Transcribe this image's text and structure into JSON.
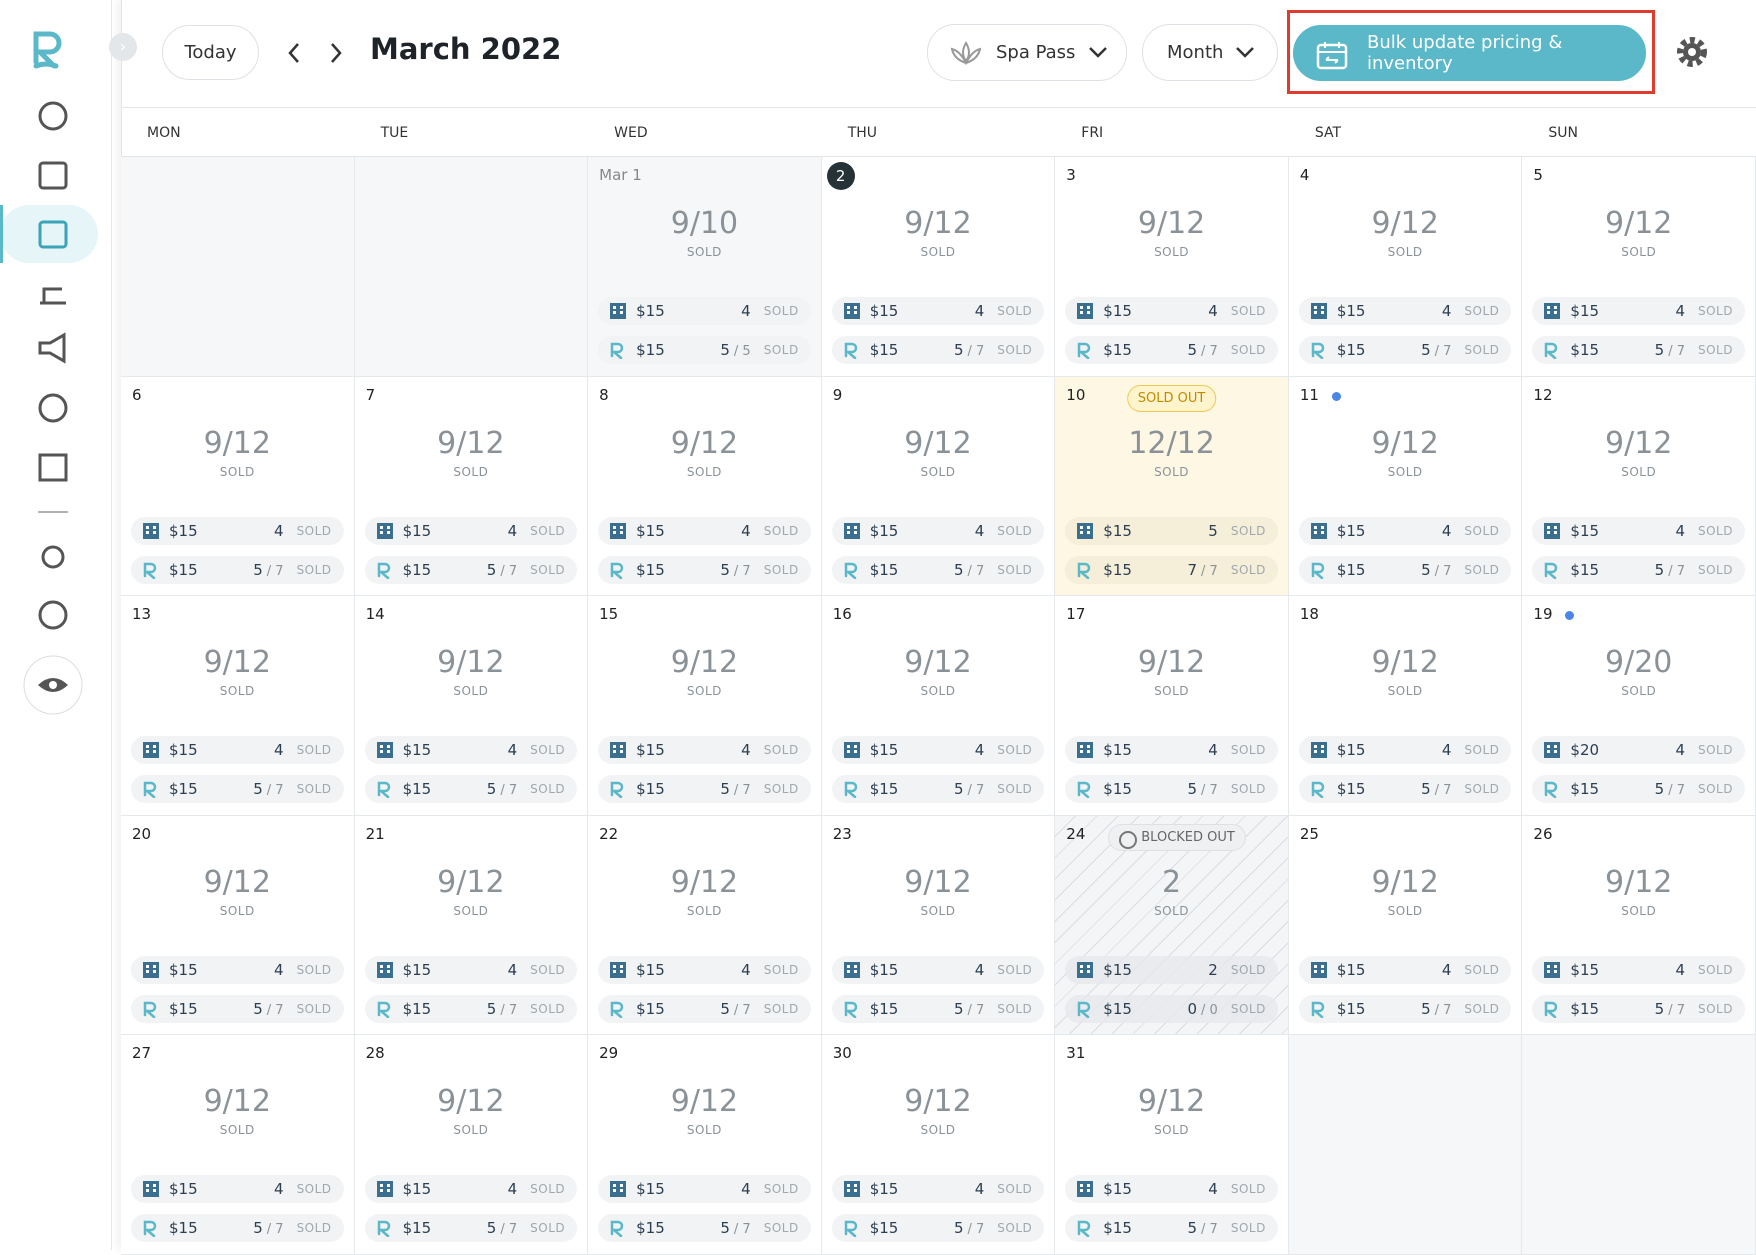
{
  "header": {
    "today_button": "Today",
    "title": "March 2022",
    "pass_select": "Spa Pass",
    "view_select": "Month",
    "bulk_button": "Bulk update pricing & inventory"
  },
  "weekdays": [
    "MON",
    "TUE",
    "WED",
    "THU",
    "FRI",
    "SAT",
    "SUN"
  ],
  "calendar": {
    "sold_label": "SOLD",
    "weeks": [
      [
        null,
        null,
        {
          "day": "Mar 1",
          "status": "past",
          "sold": "9/10",
          "hotel_price": "$15",
          "hotel_count": "4",
          "resort_price": "$15",
          "resort_count": "5",
          "resort_cap": "/ 5"
        },
        {
          "day": "2",
          "status": "today",
          "sold": "9/12",
          "hotel_price": "$15",
          "hotel_count": "4",
          "resort_price": "$15",
          "resort_count": "5",
          "resort_cap": "/ 7"
        },
        {
          "day": "3",
          "sold": "9/12",
          "hotel_price": "$15",
          "hotel_count": "4",
          "resort_price": "$15",
          "resort_count": "5",
          "resort_cap": "/ 7"
        },
        {
          "day": "4",
          "sold": "9/12",
          "hotel_price": "$15",
          "hotel_count": "4",
          "resort_price": "$15",
          "resort_count": "5",
          "resort_cap": "/ 7"
        },
        {
          "day": "5",
          "sold": "9/12",
          "hotel_price": "$15",
          "hotel_count": "4",
          "resort_price": "$15",
          "resort_count": "5",
          "resort_cap": "/ 7"
        }
      ],
      [
        {
          "day": "6",
          "sold": "9/12",
          "hotel_price": "$15",
          "hotel_count": "4",
          "resort_price": "$15",
          "resort_count": "5",
          "resort_cap": "/ 7"
        },
        {
          "day": "7",
          "sold": "9/12",
          "hotel_price": "$15",
          "hotel_count": "4",
          "resort_price": "$15",
          "resort_count": "5",
          "resort_cap": "/ 7"
        },
        {
          "day": "8",
          "sold": "9/12",
          "hotel_price": "$15",
          "hotel_count": "4",
          "resort_price": "$15",
          "resort_count": "5",
          "resort_cap": "/ 7"
        },
        {
          "day": "9",
          "sold": "9/12",
          "hotel_price": "$15",
          "hotel_count": "4",
          "resort_price": "$15",
          "resort_count": "5",
          "resort_cap": "/ 7"
        },
        {
          "day": "10",
          "status": "sold_out",
          "badge": "SOLD OUT",
          "sold": "12/12",
          "hotel_price": "$15",
          "hotel_count": "5",
          "resort_price": "$15",
          "resort_count": "7",
          "resort_cap": "/ 7"
        },
        {
          "day": "11",
          "dot": true,
          "sold": "9/12",
          "hotel_price": "$15",
          "hotel_count": "4",
          "resort_price": "$15",
          "resort_count": "5",
          "resort_cap": "/ 7"
        },
        {
          "day": "12",
          "sold": "9/12",
          "hotel_price": "$15",
          "hotel_count": "4",
          "resort_price": "$15",
          "resort_count": "5",
          "resort_cap": "/ 7"
        }
      ],
      [
        {
          "day": "13",
          "sold": "9/12",
          "hotel_price": "$15",
          "hotel_count": "4",
          "resort_price": "$15",
          "resort_count": "5",
          "resort_cap": "/ 7"
        },
        {
          "day": "14",
          "sold": "9/12",
          "hotel_price": "$15",
          "hotel_count": "4",
          "resort_price": "$15",
          "resort_count": "5",
          "resort_cap": "/ 7"
        },
        {
          "day": "15",
          "sold": "9/12",
          "hotel_price": "$15",
          "hotel_count": "4",
          "resort_price": "$15",
          "resort_count": "5",
          "resort_cap": "/ 7"
        },
        {
          "day": "16",
          "sold": "9/12",
          "hotel_price": "$15",
          "hotel_count": "4",
          "resort_price": "$15",
          "resort_count": "5",
          "resort_cap": "/ 7"
        },
        {
          "day": "17",
          "sold": "9/12",
          "hotel_price": "$15",
          "hotel_count": "4",
          "resort_price": "$15",
          "resort_count": "5",
          "resort_cap": "/ 7"
        },
        {
          "day": "18",
          "sold": "9/12",
          "hotel_price": "$15",
          "hotel_count": "4",
          "resort_price": "$15",
          "resort_count": "5",
          "resort_cap": "/ 7"
        },
        {
          "day": "19",
          "dot": true,
          "sold": "9/20",
          "hotel_price": "$20",
          "hotel_count": "4",
          "resort_price": "$15",
          "resort_count": "5",
          "resort_cap": "/ 7"
        }
      ],
      [
        {
          "day": "20",
          "sold": "9/12",
          "hotel_price": "$15",
          "hotel_count": "4",
          "resort_price": "$15",
          "resort_count": "5",
          "resort_cap": "/ 7"
        },
        {
          "day": "21",
          "sold": "9/12",
          "hotel_price": "$15",
          "hotel_count": "4",
          "resort_price": "$15",
          "resort_count": "5",
          "resort_cap": "/ 7"
        },
        {
          "day": "22",
          "sold": "9/12",
          "hotel_price": "$15",
          "hotel_count": "4",
          "resort_price": "$15",
          "resort_count": "5",
          "resort_cap": "/ 7"
        },
        {
          "day": "23",
          "sold": "9/12",
          "hotel_price": "$15",
          "hotel_count": "4",
          "resort_price": "$15",
          "resort_count": "5",
          "resort_cap": "/ 7"
        },
        {
          "day": "24",
          "status": "blocked",
          "badge": "BLOCKED OUT",
          "sold": "2",
          "hotel_price": "$15",
          "hotel_count": "2",
          "resort_price": "$15",
          "resort_count": "0",
          "resort_cap": "/ 0"
        },
        {
          "day": "25",
          "sold": "9/12",
          "hotel_price": "$15",
          "hotel_count": "4",
          "resort_price": "$15",
          "resort_count": "5",
          "resort_cap": "/ 7"
        },
        {
          "day": "26",
          "sold": "9/12",
          "hotel_price": "$15",
          "hotel_count": "4",
          "resort_price": "$15",
          "resort_count": "5",
          "resort_cap": "/ 7"
        }
      ],
      [
        {
          "day": "27",
          "sold": "9/12",
          "hotel_price": "$15",
          "hotel_count": "4",
          "resort_price": "$15",
          "resort_count": "5",
          "resort_cap": "/ 7"
        },
        {
          "day": "28",
          "sold": "9/12",
          "hotel_price": "$15",
          "hotel_count": "4",
          "resort_price": "$15",
          "resort_count": "5",
          "resort_cap": "/ 7"
        },
        {
          "day": "29",
          "sold": "9/12",
          "hotel_price": "$15",
          "hotel_count": "4",
          "resort_price": "$15",
          "resort_count": "5",
          "resort_cap": "/ 7"
        },
        {
          "day": "30",
          "sold": "9/12",
          "hotel_price": "$15",
          "hotel_count": "4",
          "resort_price": "$15",
          "resort_count": "5",
          "resort_cap": "/ 7"
        },
        {
          "day": "31",
          "sold": "9/12",
          "hotel_price": "$15",
          "hotel_count": "4",
          "resort_price": "$15",
          "resort_count": "5",
          "resort_cap": "/ 7"
        },
        null,
        null
      ]
    ]
  }
}
